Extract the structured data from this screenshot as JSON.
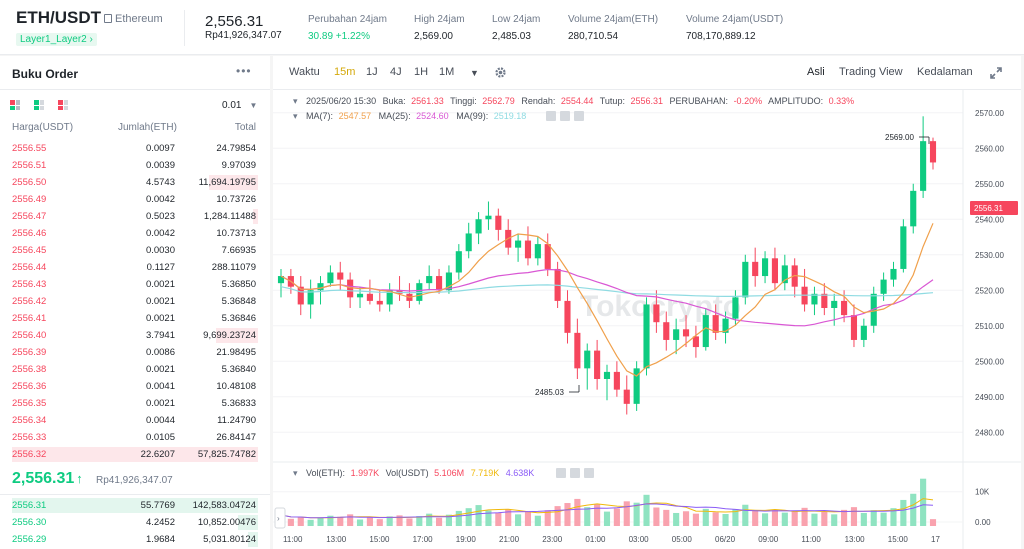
{
  "header": {
    "pair": "ETH/USDT",
    "coin_name": "Ethereum",
    "tag": "Layer1_Layer2",
    "tag_arrow": "›",
    "last_price": "2,556.31",
    "last_price_idr": "Rp41,926,347.07",
    "stats": [
      {
        "label": "Perubahan 24jam",
        "value": "30.89 +1.22%",
        "color": "green"
      },
      {
        "label": "High 24jam",
        "value": "2,569.00",
        "color": ""
      },
      {
        "label": "Low 24jam",
        "value": "2,485.03",
        "color": ""
      },
      {
        "label": "Volume 24jam(ETH)",
        "value": "280,710.54",
        "color": ""
      },
      {
        "label": "Volume 24jam(USDT)",
        "value": "708,170,889.12",
        "color": ""
      }
    ]
  },
  "orderbook": {
    "title": "Buku Order",
    "more": "•••",
    "precision": "0.01",
    "col_price": "Harga(USDT)",
    "col_amount": "Jumlah(ETH)",
    "col_total": "Total",
    "asks": [
      {
        "price": "2556.55",
        "amount": "0.0097",
        "total": "24.79854",
        "depth": 0
      },
      {
        "price": "2556.51",
        "amount": "0.0039",
        "total": "9.97039",
        "depth": 0
      },
      {
        "price": "2556.50",
        "amount": "4.5743",
        "total": "11,694.19795",
        "depth": 0.2
      },
      {
        "price": "2556.49",
        "amount": "0.0042",
        "total": "10.73726",
        "depth": 0
      },
      {
        "price": "2556.47",
        "amount": "0.5023",
        "total": "1,284.11488",
        "depth": 0.02
      },
      {
        "price": "2556.46",
        "amount": "0.0042",
        "total": "10.73713",
        "depth": 0
      },
      {
        "price": "2556.45",
        "amount": "0.0030",
        "total": "7.66935",
        "depth": 0
      },
      {
        "price": "2556.44",
        "amount": "0.1127",
        "total": "288.11079",
        "depth": 0
      },
      {
        "price": "2556.43",
        "amount": "0.0021",
        "total": "5.36850",
        "depth": 0
      },
      {
        "price": "2556.42",
        "amount": "0.0021",
        "total": "5.36848",
        "depth": 0
      },
      {
        "price": "2556.41",
        "amount": "0.0021",
        "total": "5.36846",
        "depth": 0
      },
      {
        "price": "2556.40",
        "amount": "3.7941",
        "total": "9,699.23724",
        "depth": 0.17
      },
      {
        "price": "2556.39",
        "amount": "0.0086",
        "total": "21.98495",
        "depth": 0
      },
      {
        "price": "2556.38",
        "amount": "0.0021",
        "total": "5.36840",
        "depth": 0
      },
      {
        "price": "2556.36",
        "amount": "0.0041",
        "total": "10.48108",
        "depth": 0
      },
      {
        "price": "2556.35",
        "amount": "0.0021",
        "total": "5.36833",
        "depth": 0
      },
      {
        "price": "2556.34",
        "amount": "0.0044",
        "total": "11.24790",
        "depth": 0
      },
      {
        "price": "2556.33",
        "amount": "0.0105",
        "total": "26.84147",
        "depth": 0
      },
      {
        "price": "2556.32",
        "amount": "22.6207",
        "total": "57,825.74782",
        "depth": 1.0
      }
    ],
    "mid_price": "2,556.31",
    "mid_arrow": "↑",
    "mid_idr": "Rp41,926,347.07",
    "bids": [
      {
        "price": "2556.31",
        "amount": "55.7769",
        "total": "142,583.04724",
        "depth": 1.0
      },
      {
        "price": "2556.30",
        "amount": "4.2452",
        "total": "10,852.00476",
        "depth": 0.08
      },
      {
        "price": "2556.29",
        "amount": "1.9684",
        "total": "5,031.80124",
        "depth": 0.04
      }
    ]
  },
  "toolbar": {
    "intervals": [
      "Waktu",
      "15m",
      "1J",
      "4J",
      "1H",
      "1M"
    ],
    "active_interval": "15m",
    "views": [
      "Asli",
      "Trading View",
      "Kedalaman"
    ],
    "active_view": "Asli"
  },
  "legend": {
    "date": "2025/06/20 15:30",
    "open_label": "Buka:",
    "open": "2561.33",
    "high_label": "Tinggi:",
    "high": "2562.79",
    "low_label": "Rendah:",
    "low": "2554.44",
    "close_label": "Tutup:",
    "close": "2556.31",
    "change_label": "PERUBAHAN:",
    "change": "-0.20%",
    "amp_label": "AMPLITUDO:",
    "amp": "0.33%",
    "ma7_label": "MA(7):",
    "ma7": "2547.57",
    "ma25_label": "MA(25):",
    "ma25": "2524.60",
    "ma99_label": "MA(99):",
    "ma99": "2519.18",
    "vol_eth_label": "Vol(ETH):",
    "vol_eth": "1.997K",
    "vol_usdt_label": "Vol(USDT)",
    "vol_usdt": "5.106M",
    "vol_ma1": "7.719K",
    "vol_ma2": "4.638K"
  },
  "watermark": "Tokocrypto",
  "colors": {
    "up": "#0ecb81",
    "down": "#f6465d",
    "ma7": "#f0a04b",
    "ma25": "#d957d4",
    "ma99": "#8fdbe2",
    "accent": "#d4a90b"
  },
  "chart_data": {
    "type": "candlestick",
    "interval": "15m",
    "price_axis": {
      "ticks": [
        2480,
        2490,
        2500,
        2510,
        2520,
        2530,
        2540,
        2550,
        2560,
        2570
      ],
      "current": "2556.31"
    },
    "high_marker": "2569.00",
    "low_marker": "2485.03",
    "x_ticks": [
      "11:00",
      "13:00",
      "15:00",
      "17:00",
      "19:00",
      "21:00",
      "23:00",
      "01:00",
      "03:00",
      "05:00",
      "06/20",
      "09:00",
      "11:00",
      "13:00",
      "15:00",
      "17"
    ],
    "volume_axis": {
      "ticks": [
        "10K",
        "0.00"
      ]
    },
    "ohlc": [
      [
        2522,
        2526,
        2518,
        2524
      ],
      [
        2524,
        2526,
        2519,
        2521
      ],
      [
        2521,
        2524,
        2513,
        2516
      ],
      [
        2516,
        2523,
        2512,
        2520
      ],
      [
        2520,
        2524,
        2516,
        2522
      ],
      [
        2522,
        2527,
        2521,
        2525
      ],
      [
        2525,
        2528,
        2520,
        2523
      ],
      [
        2523,
        2525,
        2515,
        2518
      ],
      [
        2518,
        2521,
        2515,
        2519
      ],
      [
        2519,
        2523,
        2516,
        2517
      ],
      [
        2517,
        2520,
        2514,
        2516
      ],
      [
        2516,
        2522,
        2514,
        2520
      ],
      [
        2520,
        2524,
        2517,
        2519
      ],
      [
        2519,
        2522,
        2515,
        2517
      ],
      [
        2517,
        2523,
        2516,
        2522
      ],
      [
        2522,
        2527,
        2520,
        2524
      ],
      [
        2524,
        2526,
        2519,
        2520
      ],
      [
        2520,
        2527,
        2519,
        2525
      ],
      [
        2525,
        2533,
        2523,
        2531
      ],
      [
        2531,
        2539,
        2529,
        2536
      ],
      [
        2536,
        2542,
        2533,
        2540
      ],
      [
        2540,
        2545,
        2537,
        2541
      ],
      [
        2541,
        2543,
        2534,
        2537
      ],
      [
        2537,
        2540,
        2530,
        2532
      ],
      [
        2532,
        2536,
        2528,
        2534
      ],
      [
        2534,
        2538,
        2527,
        2529
      ],
      [
        2529,
        2535,
        2527,
        2533
      ],
      [
        2533,
        2536,
        2524,
        2526
      ],
      [
        2526,
        2528,
        2515,
        2517
      ],
      [
        2517,
        2520,
        2505,
        2508
      ],
      [
        2508,
        2512,
        2495,
        2498
      ],
      [
        2498,
        2505,
        2492,
        2503
      ],
      [
        2503,
        2506,
        2492,
        2495
      ],
      [
        2495,
        2499,
        2489,
        2497
      ],
      [
        2497,
        2500,
        2490,
        2492
      ],
      [
        2492,
        2496,
        2485,
        2488
      ],
      [
        2488,
        2500,
        2486,
        2498
      ],
      [
        2498,
        2518,
        2496,
        2516
      ],
      [
        2516,
        2520,
        2508,
        2511
      ],
      [
        2511,
        2514,
        2503,
        2506
      ],
      [
        2506,
        2512,
        2502,
        2509
      ],
      [
        2509,
        2513,
        2504,
        2507
      ],
      [
        2507,
        2510,
        2501,
        2504
      ],
      [
        2504,
        2515,
        2503,
        2513
      ],
      [
        2513,
        2516,
        2506,
        2508
      ],
      [
        2508,
        2514,
        2505,
        2512
      ],
      [
        2512,
        2520,
        2510,
        2518
      ],
      [
        2518,
        2530,
        2516,
        2528
      ],
      [
        2528,
        2532,
        2521,
        2524
      ],
      [
        2524,
        2531,
        2522,
        2529
      ],
      [
        2529,
        2532,
        2520,
        2522
      ],
      [
        2522,
        2530,
        2520,
        2527
      ],
      [
        2527,
        2529,
        2518,
        2521
      ],
      [
        2521,
        2526,
        2514,
        2516
      ],
      [
        2516,
        2521,
        2513,
        2519
      ],
      [
        2519,
        2522,
        2513,
        2515
      ],
      [
        2515,
        2519,
        2510,
        2517
      ],
      [
        2517,
        2520,
        2511,
        2513
      ],
      [
        2513,
        2516,
        2504,
        2506
      ],
      [
        2506,
        2512,
        2504,
        2510
      ],
      [
        2510,
        2521,
        2508,
        2519
      ],
      [
        2519,
        2525,
        2517,
        2523
      ],
      [
        2523,
        2528,
        2521,
        2526
      ],
      [
        2526,
        2540,
        2525,
        2538
      ],
      [
        2538,
        2550,
        2536,
        2548
      ],
      [
        2548,
        2569,
        2546,
        2562
      ],
      [
        2562,
        2563,
        2554,
        2556
      ]
    ],
    "volume": [
      3.2,
      2.1,
      2.6,
      1.8,
      2.4,
      3.0,
      2.7,
      3.4,
      1.9,
      2.5,
      2.0,
      2.8,
      3.1,
      2.2,
      2.9,
      3.6,
      2.4,
      3.3,
      4.4,
      5.2,
      6.1,
      4.5,
      3.9,
      4.8,
      3.4,
      4.1,
      3.0,
      4.6,
      5.8,
      6.7,
      7.9,
      5.5,
      6.3,
      4.2,
      5.1,
      7.2,
      6.8,
      9.1,
      5.4,
      4.7,
      3.8,
      4.3,
      3.6,
      5.0,
      4.0,
      3.5,
      4.9,
      6.2,
      4.4,
      3.7,
      4.8,
      3.9,
      4.2,
      5.3,
      3.6,
      4.1,
      3.4,
      4.7,
      5.5,
      3.8,
      4.6,
      3.9,
      5.2,
      7.6,
      9.4,
      13.8,
      2.0
    ],
    "series": [
      {
        "name": "MA(7)"
      },
      {
        "name": "MA(25)"
      },
      {
        "name": "MA(99)"
      }
    ]
  }
}
